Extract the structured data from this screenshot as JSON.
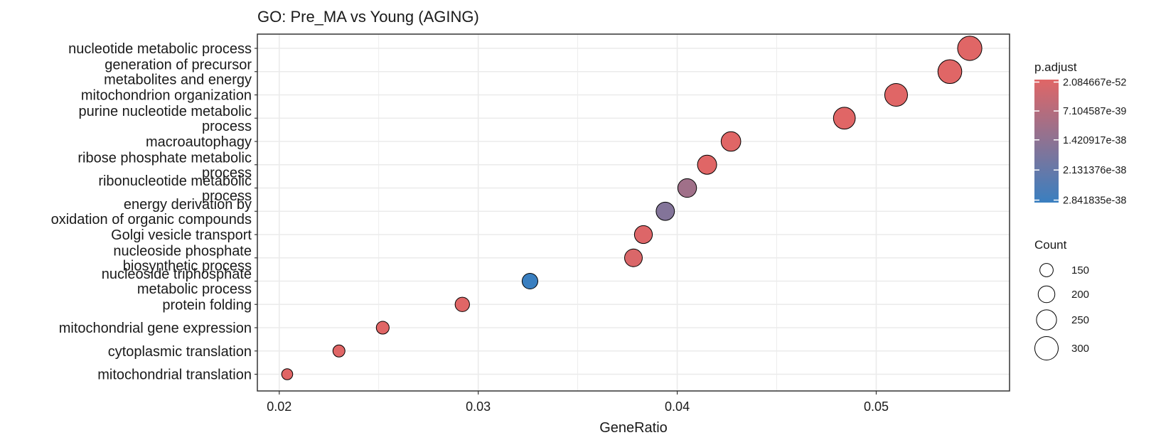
{
  "chart_data": {
    "type": "scatter",
    "title": "GO: Pre_MA vs Young (AGING)",
    "xlabel": "GeneRatio",
    "ylabel": "",
    "xlim": [
      0.0189,
      0.0567
    ],
    "x_ticks": [
      "0.02",
      "0.03",
      "0.04",
      "0.05"
    ],
    "x_tick_values": [
      0.02,
      0.03,
      0.04,
      0.05
    ],
    "grid": true,
    "categories": [
      "nucleotide metabolic process",
      "generation of precursor metabolites and energy",
      "mitochondrion organization",
      "purine nucleotide metabolic process",
      "macroautophagy",
      "ribose phosphate metabolic process",
      "ribonucleotide metabolic process",
      "energy derivation by oxidation of organic compounds",
      "Golgi vesicle transport",
      "nucleoside phosphate biosynthetic process",
      "nucleoside triphosphate metabolic process",
      "protein folding",
      "mitochondrial gene expression",
      "cytoplasmic translation",
      "mitochondrial translation"
    ],
    "category_label_lines": [
      [
        "nucleotide metabolic process"
      ],
      [
        "generation of precursor",
        "metabolites and energy"
      ],
      [
        "mitochondrion organization"
      ],
      [
        "purine nucleotide metabolic",
        "process"
      ],
      [
        "macroautophagy"
      ],
      [
        "ribose phosphate metabolic",
        "process"
      ],
      [
        "ribonucleotide metabolic",
        "process"
      ],
      [
        "energy derivation by",
        "oxidation of organic compounds"
      ],
      [
        "Golgi vesicle transport"
      ],
      [
        "nucleoside phosphate",
        "biosynthetic process"
      ],
      [
        "nucleoside triphosphate",
        "metabolic process"
      ],
      [
        "protein folding"
      ],
      [
        "mitochondrial gene expression"
      ],
      [
        "cytoplasmic translation"
      ],
      [
        "mitochondrial translation"
      ]
    ],
    "points": [
      {
        "term": "nucleotide metabolic process",
        "gene_ratio": 0.0547,
        "count": 312,
        "p_adjust": 2.1e-52
      },
      {
        "term": "generation of precursor metabolites and energy",
        "gene_ratio": 0.0537,
        "count": 306,
        "p_adjust": 5e-50
      },
      {
        "term": "mitochondrion organization",
        "gene_ratio": 0.051,
        "count": 290,
        "p_adjust": 1e-48
      },
      {
        "term": "purine nucleotide metabolic process",
        "gene_ratio": 0.0484,
        "count": 276,
        "p_adjust": 1e-45
      },
      {
        "term": "macroautophagy",
        "gene_ratio": 0.0427,
        "count": 243,
        "p_adjust": 1e-42
      },
      {
        "term": "ribose phosphate metabolic process",
        "gene_ratio": 0.0415,
        "count": 236,
        "p_adjust": 2e-41
      },
      {
        "term": "ribonucleotide metabolic process",
        "gene_ratio": 0.0405,
        "count": 230,
        "p_adjust": 1.1e-38
      },
      {
        "term": "energy derivation by oxidation of organic compounds",
        "gene_ratio": 0.0394,
        "count": 224,
        "p_adjust": 1.6e-38
      },
      {
        "term": "Golgi vesicle transport",
        "gene_ratio": 0.0383,
        "count": 218,
        "p_adjust": 5e-40
      },
      {
        "term": "nucleoside phosphate biosynthetic process",
        "gene_ratio": 0.0378,
        "count": 215,
        "p_adjust": 1e-39
      },
      {
        "term": "nucleoside triphosphate metabolic process",
        "gene_ratio": 0.0326,
        "count": 185,
        "p_adjust": 2.84e-38
      },
      {
        "term": "protein folding",
        "gene_ratio": 0.0292,
        "count": 166,
        "p_adjust": 1e-41
      },
      {
        "term": "mitochondrial gene expression",
        "gene_ratio": 0.0252,
        "count": 143,
        "p_adjust": 1e-43
      },
      {
        "term": "cytoplasmic translation",
        "gene_ratio": 0.023,
        "count": 131,
        "p_adjust": 5e-44
      },
      {
        "term": "mitochondrial translation",
        "gene_ratio": 0.0204,
        "count": 116,
        "p_adjust": 1e-45
      }
    ],
    "color_legend": {
      "title": "p.adjust",
      "labels": [
        "2.084667e-52",
        "7.104587e-39",
        "1.420917e-38",
        "2.131376e-38",
        "2.841835e-38"
      ],
      "values": [
        2.084667e-52,
        7.104587e-39,
        1.420917e-38,
        2.131376e-38,
        2.841835e-38
      ],
      "low_color": "#e06666",
      "high_color": "#3a7fc0"
    },
    "size_legend": {
      "title": "Count",
      "labels": [
        "150",
        "200",
        "250",
        "300"
      ],
      "values": [
        150,
        200,
        250,
        300
      ]
    },
    "legend_position": "right",
    "colors": {
      "point_outline": "#000000",
      "grid": "#ebebeb",
      "panel_border": "#333333"
    }
  }
}
